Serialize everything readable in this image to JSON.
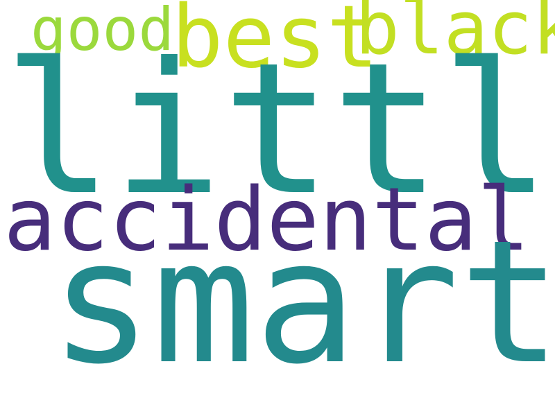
{
  "words": [
    {
      "text": "little",
      "color": "#21918c"
    },
    {
      "text": "smart",
      "color": "#238a8d"
    },
    {
      "text": "accidental",
      "color": "#472d7b"
    },
    {
      "text": "best",
      "color": "#c8e020"
    },
    {
      "text": "black",
      "color": "#c2df23"
    },
    {
      "text": "good",
      "color": "#9bd93c"
    }
  ]
}
